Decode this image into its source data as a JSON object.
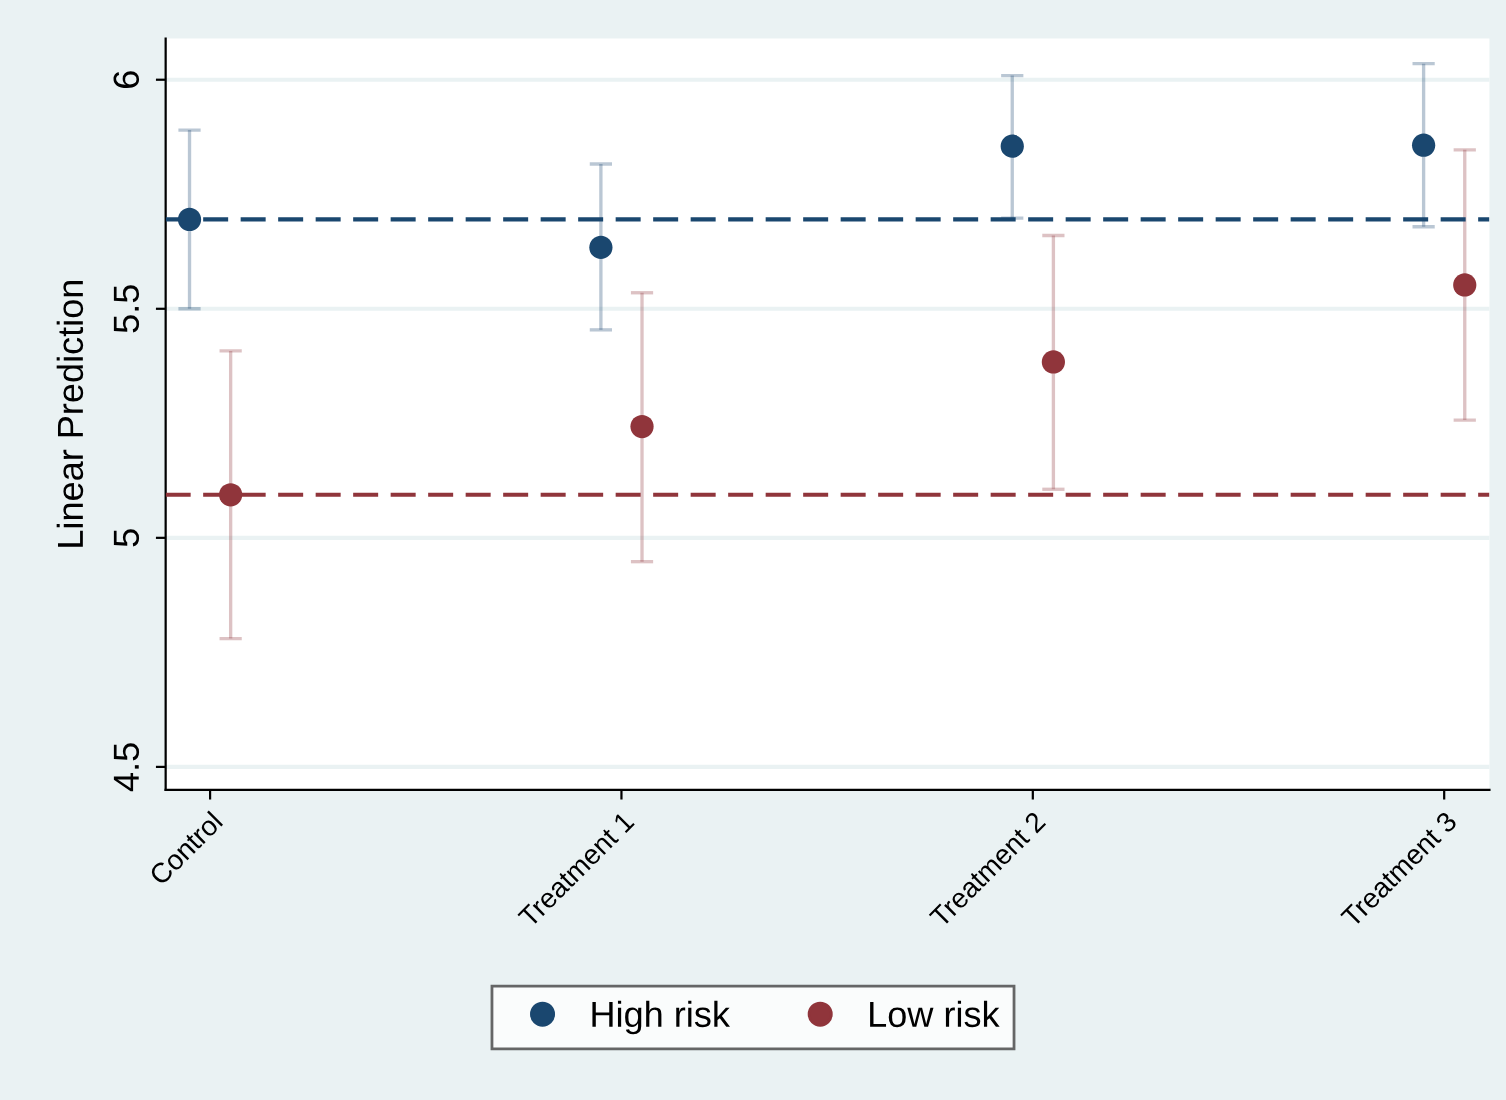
{
  "chart_data": {
    "type": "scatter",
    "ylabel": "Linear Prediction",
    "categories": [
      "Control",
      "Treatment 1",
      "Treatment 2",
      "Treatment 3"
    ],
    "series": [
      {
        "name": "High risk",
        "color": "#1a476f",
        "values": [
          5.695,
          5.634,
          5.855,
          5.857
        ],
        "errors": [
          [
            5.5,
            5.89
          ],
          [
            5.454,
            5.816
          ],
          [
            5.698,
            6.009
          ],
          [
            5.679,
            6.035
          ]
        ]
      },
      {
        "name": "Low risk",
        "color": "#90353b",
        "values": [
          5.094,
          5.243,
          5.384,
          5.552
        ],
        "errors": [
          [
            4.78,
            5.408
          ],
          [
            4.948,
            5.535
          ],
          [
            5.106,
            5.66
          ],
          [
            5.257,
            5.847
          ]
        ]
      }
    ],
    "ref_lines": [
      {
        "axis": "y",
        "value": 5.695,
        "color": "#1a476f",
        "line_style": "dashed"
      },
      {
        "axis": "y",
        "value": 5.094,
        "color": "#90353b",
        "line_style": "dashed"
      }
    ],
    "ylim": [
      4.45,
      6.09
    ],
    "yticks": [
      4.5,
      5,
      5.5,
      6
    ],
    "grid": "y",
    "legend": "bottom",
    "marker": "circle"
  }
}
